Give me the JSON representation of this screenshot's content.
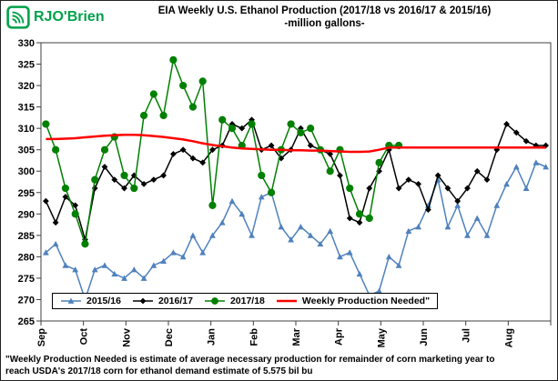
{
  "header": {
    "logo_text": "RJO'Brien"
  },
  "colors": {
    "brand_green": "#00A14B",
    "blue": "#4f81bd",
    "black": "#000000",
    "green": "#008000",
    "red": "#ff0000"
  },
  "chart_data": {
    "type": "line",
    "title": "EIA Weekly U.S. Ethanol Production (2017/18 vs 2016/17 & 2015/16)",
    "subtitle": "-million gallons-",
    "xlabel": "",
    "ylabel": "",
    "ylim": [
      265,
      330
    ],
    "ytick_step": 5,
    "yticks": [
      265,
      270,
      275,
      280,
      285,
      290,
      295,
      300,
      305,
      310,
      315,
      320,
      325,
      330
    ],
    "grid": false,
    "legend_position": "bottom-inside",
    "weeks_total": 52,
    "x_axis": {
      "categories": [
        "Sep",
        "Oct",
        "Nov",
        "Dec",
        "Jan",
        "Feb",
        "Mar",
        "Apr",
        "May",
        "Jun",
        "Jul",
        "Aug"
      ],
      "unit": "weekly data points"
    },
    "series": [
      {
        "name": "2015/16",
        "color": "#4f81bd",
        "marker": "triangle",
        "line_width": 1.5,
        "values": [
          281,
          283,
          278,
          277,
          270,
          277,
          278,
          276,
          275,
          277,
          275,
          278,
          279,
          281,
          280,
          285,
          281,
          285,
          288,
          293,
          290,
          285,
          294,
          295,
          287,
          284,
          287,
          285,
          283,
          286,
          280,
          281,
          276,
          271,
          272,
          280,
          278,
          286,
          287,
          292,
          298,
          287,
          292,
          285,
          289,
          285,
          292,
          297,
          301,
          296,
          302,
          301
        ]
      },
      {
        "name": "2016/17",
        "color": "#000000",
        "marker": "diamond",
        "line_width": 1.5,
        "values": [
          293,
          288,
          294,
          292,
          284,
          296,
          301,
          298,
          296,
          299,
          297,
          298,
          299,
          304,
          305,
          303,
          302,
          305,
          306,
          311,
          310,
          312,
          305,
          306,
          303,
          305,
          310,
          306,
          305,
          304,
          299,
          289,
          288,
          296,
          300,
          305,
          296,
          298,
          297,
          291,
          299,
          296,
          293,
          296,
          300,
          298,
          305,
          311,
          309,
          307,
          306,
          306
        ]
      },
      {
        "name": "2017/18",
        "color": "#008000",
        "marker": "circle",
        "line_width": 1.5,
        "values": [
          311,
          305,
          296,
          290,
          283,
          298,
          305,
          308,
          299,
          296,
          313,
          318,
          313,
          326,
          320,
          315,
          321,
          292,
          312,
          310,
          306,
          311,
          299,
          295,
          305,
          311,
          309,
          310,
          305,
          300,
          305,
          296,
          290,
          289,
          302,
          306,
          306
        ]
      },
      {
        "name": "Weekly Production Needed\"",
        "color": "#ff0000",
        "marker": "none",
        "line_width": 2.5,
        "values": [
          307.5,
          307.5,
          307.6,
          307.7,
          307.9,
          308.1,
          308.3,
          308.4,
          308.5,
          308.5,
          308.4,
          308.2,
          308.0,
          307.7,
          307.4,
          307.0,
          306.5,
          306.1,
          305.8,
          305.5,
          305.3,
          305.2,
          305.1,
          305.0,
          305.0,
          304.9,
          304.9,
          304.8,
          304.8,
          304.7,
          304.6,
          304.5,
          304.5,
          304.6,
          305.0,
          305.5,
          305.5,
          305.5,
          305.5,
          305.5,
          305.5,
          305.5,
          305.5,
          305.5,
          305.5,
          305.5,
          305.5,
          305.5,
          305.5,
          305.5,
          305.5,
          305.5
        ]
      }
    ]
  },
  "footnote": {
    "line1": "\"Weekly Production Needed is estimate of average necessary production for remainder of corn marketing year to",
    "line2": "reach USDA's 2017/18 corn for ethanol demand estimate of 5.575 bil bu"
  }
}
